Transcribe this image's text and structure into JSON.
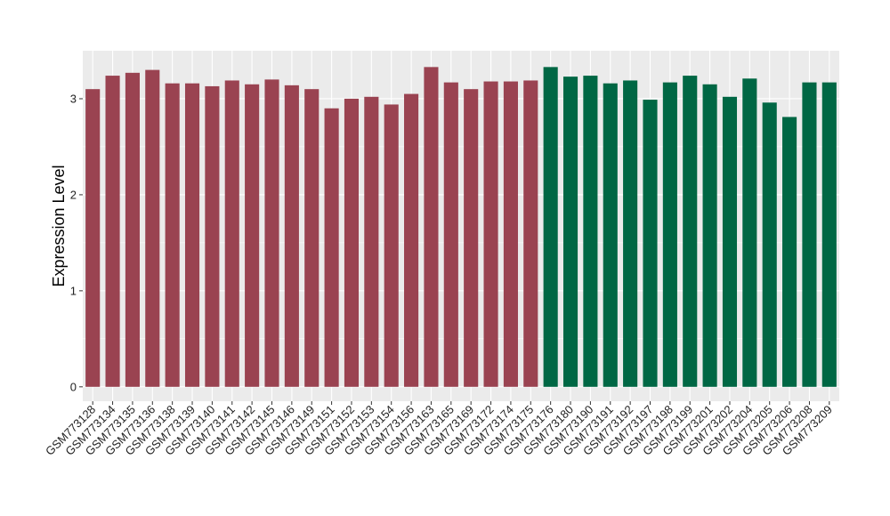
{
  "chart_data": {
    "type": "bar",
    "ylabel": "Expression Level",
    "xlabel": "",
    "ylim": [
      -0.15,
      3.5
    ],
    "yticks": [
      0,
      1,
      2,
      3
    ],
    "grid": true,
    "background": "#EBEBEB",
    "colors": {
      "group1": "#9A4351",
      "group2": "#006744"
    },
    "categories": [
      "GSM773128",
      "GSM773134",
      "GSM773135",
      "GSM773136",
      "GSM773138",
      "GSM773139",
      "GSM773140",
      "GSM773141",
      "GSM773142",
      "GSM773145",
      "GSM773146",
      "GSM773149",
      "GSM773151",
      "GSM773152",
      "GSM773153",
      "GSM773154",
      "GSM773156",
      "GSM773163",
      "GSM773165",
      "GSM773169",
      "GSM773172",
      "GSM773174",
      "GSM773175",
      "GSM773176",
      "GSM773180",
      "GSM773190",
      "GSM773191",
      "GSM773192",
      "GSM773197",
      "GSM773198",
      "GSM773199",
      "GSM773201",
      "GSM773202",
      "GSM773204",
      "GSM773205",
      "GSM773206",
      "GSM773208",
      "GSM773209"
    ],
    "values": [
      3.1,
      3.24,
      3.27,
      3.3,
      3.16,
      3.16,
      3.13,
      3.19,
      3.15,
      3.2,
      3.14,
      3.1,
      2.9,
      3.0,
      3.02,
      2.94,
      3.05,
      3.33,
      3.17,
      3.1,
      3.18,
      3.18,
      3.19,
      3.33,
      3.23,
      3.24,
      3.16,
      3.19,
      2.99,
      3.17,
      3.24,
      3.15,
      3.02,
      3.21,
      2.96,
      2.81,
      3.17,
      3.17
    ],
    "groups": [
      1,
      1,
      1,
      1,
      1,
      1,
      1,
      1,
      1,
      1,
      1,
      1,
      1,
      1,
      1,
      1,
      1,
      1,
      1,
      1,
      1,
      1,
      1,
      2,
      2,
      2,
      2,
      2,
      2,
      2,
      2,
      2,
      2,
      2,
      2,
      2,
      2,
      2
    ]
  }
}
